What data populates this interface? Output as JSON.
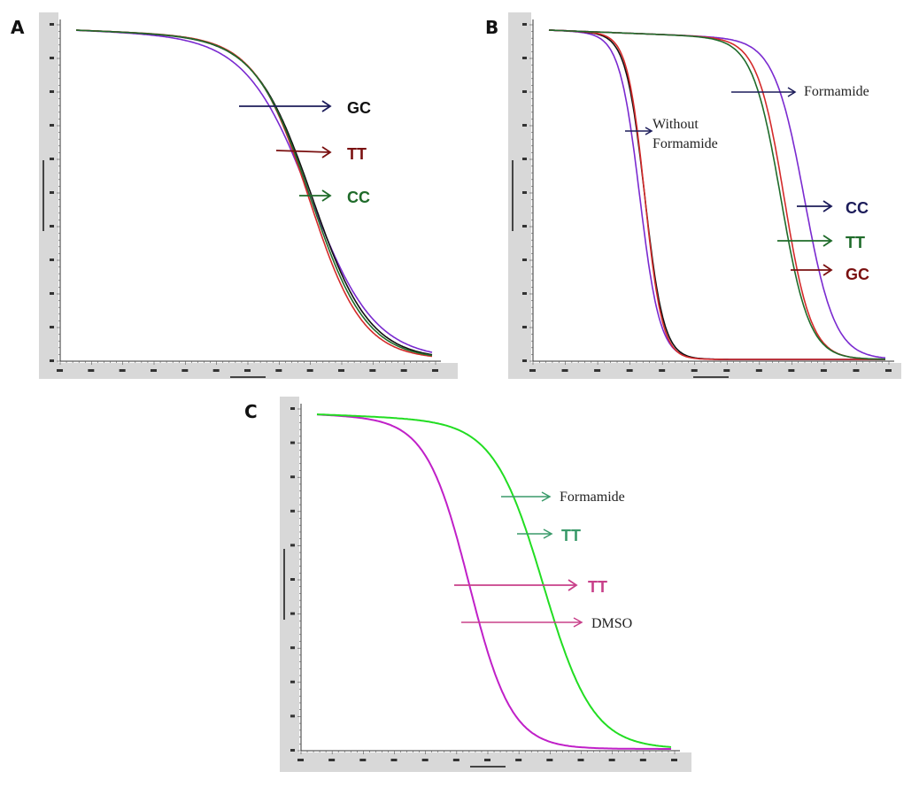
{
  "colors": {
    "navy": "#1c1c5a",
    "dark_red": "#7a1010",
    "red": "#d42a2a",
    "dark_green": "#1f6b2a",
    "purple": "#7a2ad0",
    "black": "#111111",
    "bright_green": "#22dd22",
    "magenta": "#c020c8",
    "label_green": "#3a9a6a",
    "label_pink": "#c8408a",
    "axis_gray": "#d8d8d8"
  },
  "chart_data": [
    {
      "panel": "A",
      "type": "line",
      "title": "",
      "grid": false,
      "annotations": [
        {
          "text": "GC",
          "color": "navy"
        },
        {
          "text": "TT",
          "color": "dark_red"
        },
        {
          "text": "CC",
          "color": "dark_green"
        }
      ],
      "series": [
        {
          "color": "purple",
          "tm": 0.66,
          "width": 0.09
        },
        {
          "color": "black",
          "tm": 0.665,
          "width": 0.08
        },
        {
          "color": "red",
          "tm": 0.655,
          "width": 0.075
        },
        {
          "color": "dark_green",
          "tm": 0.66,
          "width": 0.078
        }
      ],
      "x_range": [
        0,
        1
      ],
      "y_range": [
        0,
        1
      ]
    },
    {
      "panel": "B",
      "type": "line",
      "title": "",
      "grid": false,
      "annotations": [
        {
          "text": "Formamide",
          "color": "navy"
        },
        {
          "text": "Without Formamide",
          "color": "navy"
        },
        {
          "text": "CC",
          "color": "navy"
        },
        {
          "text": "TT",
          "color": "dark_green"
        },
        {
          "text": "GC",
          "color": "dark_red"
        }
      ],
      "series": [
        {
          "color": "purple",
          "tm": 0.27,
          "width": 0.03
        },
        {
          "color": "black",
          "tm": 0.285,
          "width": 0.028
        },
        {
          "color": "red",
          "tm": 0.285,
          "width": 0.026
        },
        {
          "color": "purple",
          "tm": 0.76,
          "width": 0.045
        },
        {
          "color": "red",
          "tm": 0.7,
          "width": 0.04
        },
        {
          "color": "dark_green",
          "tm": 0.69,
          "width": 0.042
        }
      ],
      "x_range": [
        0,
        1
      ],
      "y_range": [
        0,
        1
      ]
    },
    {
      "panel": "C",
      "type": "line",
      "title": "",
      "grid": false,
      "annotations": [
        {
          "text": "Formamide",
          "color": "label_green"
        },
        {
          "text": "TT",
          "color": "label_green"
        },
        {
          "text": "TT",
          "color": "label_pink"
        },
        {
          "text": "DMSO",
          "color": "label_pink"
        }
      ],
      "series": [
        {
          "color": "magenta",
          "tm": 0.43,
          "width": 0.06
        },
        {
          "color": "bright_green",
          "tm": 0.64,
          "width": 0.07
        }
      ],
      "x_range": [
        0,
        1
      ],
      "y_range": [
        0,
        1
      ]
    }
  ],
  "panels": {
    "a": {
      "letter": "A",
      "label_gc": "GC",
      "label_tt": "TT",
      "label_cc": "CC"
    },
    "b": {
      "letter": "B",
      "label_formamide": "Formamide",
      "label_without_1": "Without",
      "label_without_2": "Formamide",
      "label_cc": "CC",
      "label_tt": "TT",
      "label_gc": "GC"
    },
    "c": {
      "letter": "C",
      "label_formamide": "Formamide",
      "label_tt_green": "TT",
      "label_tt_pink": "TT",
      "label_dmso": "DMSO"
    }
  }
}
